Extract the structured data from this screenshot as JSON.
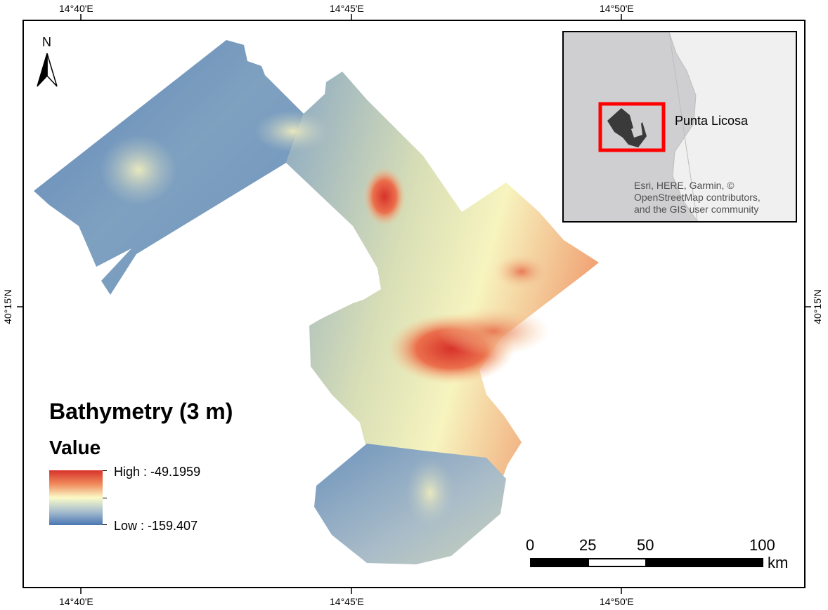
{
  "graticule": {
    "lon_top": [
      "14°40'E",
      "14°45'E",
      "14°50'E"
    ],
    "lon_bottom": [
      "14°40'E",
      "14°45'E",
      "14°50'E"
    ],
    "lat_left": [
      "40°15'N"
    ],
    "lat_right": [
      "40°15'N"
    ]
  },
  "north_arrow": {
    "label": "N",
    "icon": "north-arrow-icon"
  },
  "inset": {
    "place_label": "Punta Licosa",
    "credits_line1": "Esri, HERE, Garmin, ©",
    "credits_line2": "OpenStreetMap contributors,",
    "credits_line3": "and the GIS user community",
    "extent_box_color": "#ff0000"
  },
  "legend": {
    "title": "Bathymetry (3 m)",
    "subtitle": "Value",
    "high_label": "High : -49.1959",
    "low_label": "Low : -159.407",
    "high_value": -49.1959,
    "low_value": -159.407,
    "ramp_colors": [
      "#d7322a",
      "#f08a5c",
      "#fbfbc7",
      "#a9bfcf",
      "#4a77b3"
    ]
  },
  "scale_bar": {
    "labels": [
      "0",
      "25",
      "50",
      "100"
    ],
    "unit": "km"
  }
}
